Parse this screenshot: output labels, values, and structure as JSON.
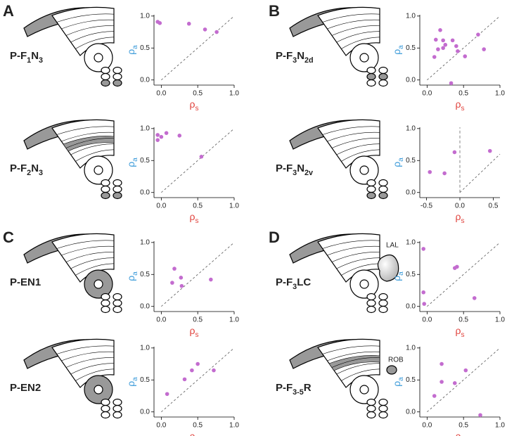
{
  "chart_data": [
    {
      "type": "scatter",
      "panel_letter": "A",
      "title_parts": [
        {
          "text": "P-F"
        },
        {
          "text": "1",
          "sub": true
        },
        {
          "text": "N"
        },
        {
          "text": "3",
          "sub": true
        }
      ],
      "x": [
        -0.05,
        -0.02,
        0.38,
        0.6,
        0.76
      ],
      "values": [
        0.91,
        0.89,
        0.88,
        0.79,
        0.75
      ],
      "xlim": [
        -0.1,
        1.0
      ],
      "ylim": [
        -0.08,
        1.02
      ],
      "xticks": [
        {
          "value": 0,
          "label": "0.0"
        },
        {
          "value": 0.5,
          "label": "0.5"
        },
        {
          "value": 1,
          "label": "1.0"
        }
      ],
      "yticks": [
        {
          "value": 0,
          "label": "0.0"
        },
        {
          "value": 0.5,
          "label": "0.5"
        },
        {
          "value": 1,
          "label": "1.0"
        }
      ],
      "xlabel_parts": [
        {
          "text": "ρ"
        },
        {
          "text": "s",
          "sub": true
        }
      ],
      "ylabel_parts": [
        {
          "text": "ρ"
        },
        {
          "text": "a",
          "sub": true
        }
      ],
      "xlabel_color": "#e0413b",
      "ylabel_color": "#3a9ad9",
      "color": "#c36ccf",
      "diagonal": true
    },
    {
      "type": "scatter",
      "title_parts": [
        {
          "text": "P-F"
        },
        {
          "text": "2",
          "sub": true
        },
        {
          "text": "N"
        },
        {
          "text": "3",
          "sub": true
        }
      ],
      "x": [
        -0.05,
        -0.05,
        0.0,
        0.07,
        0.25,
        0.55
      ],
      "values": [
        0.9,
        0.82,
        0.87,
        0.93,
        0.89,
        0.56
      ],
      "xlim": [
        -0.1,
        1.0
      ],
      "ylim": [
        -0.08,
        1.02
      ],
      "xticks": [
        {
          "value": 0,
          "label": "0.0"
        },
        {
          "value": 0.5,
          "label": "0.5"
        },
        {
          "value": 1,
          "label": "1.0"
        }
      ],
      "yticks": [
        {
          "value": 0,
          "label": "0.0"
        },
        {
          "value": 0.5,
          "label": "0.5"
        },
        {
          "value": 1,
          "label": "1.0"
        }
      ],
      "xlabel_parts": [
        {
          "text": "ρ"
        },
        {
          "text": "s",
          "sub": true
        }
      ],
      "ylabel_parts": [
        {
          "text": "ρ"
        },
        {
          "text": "a",
          "sub": true
        }
      ],
      "xlabel_color": "#e0413b",
      "ylabel_color": "#3a9ad9",
      "color": "#c36ccf",
      "diagonal": true
    },
    {
      "type": "scatter",
      "panel_letter": "B",
      "title_parts": [
        {
          "text": "P-F"
        },
        {
          "text": "3",
          "sub": true
        },
        {
          "text": "N"
        },
        {
          "text": "2d",
          "sub": true
        }
      ],
      "x": [
        0.1,
        0.12,
        0.15,
        0.18,
        0.22,
        0.22,
        0.25,
        0.33,
        0.35,
        0.4,
        0.42,
        0.52,
        0.7,
        0.78
      ],
      "values": [
        0.36,
        0.63,
        0.48,
        0.78,
        0.5,
        0.62,
        0.55,
        -0.05,
        0.62,
        0.53,
        0.45,
        0.37,
        0.71,
        0.48
      ],
      "xlim": [
        -0.1,
        1.0
      ],
      "ylim": [
        -0.08,
        1.02
      ],
      "xticks": [
        {
          "value": 0,
          "label": "0.0"
        },
        {
          "value": 0.5,
          "label": "0.5"
        },
        {
          "value": 1,
          "label": "1.0"
        }
      ],
      "yticks": [
        {
          "value": 0,
          "label": "0.0"
        },
        {
          "value": 0.5,
          "label": "0.5"
        },
        {
          "value": 1,
          "label": "1.0"
        }
      ],
      "xlabel_parts": [
        {
          "text": "ρ"
        },
        {
          "text": "s",
          "sub": true
        }
      ],
      "ylabel_parts": [
        {
          "text": "ρ"
        },
        {
          "text": "a",
          "sub": true
        }
      ],
      "xlabel_color": "#e0413b",
      "ylabel_color": "#3a9ad9",
      "color": "#c36ccf",
      "diagonal": true
    },
    {
      "type": "scatter",
      "title_parts": [
        {
          "text": "P-F"
        },
        {
          "text": "3",
          "sub": true
        },
        {
          "text": "N"
        },
        {
          "text": "2v",
          "sub": true
        }
      ],
      "x": [
        -0.45,
        -0.23,
        -0.08,
        0.45
      ],
      "values": [
        0.32,
        0.3,
        0.63,
        0.65
      ],
      "xlim": [
        -0.6,
        0.6
      ],
      "ylim": [
        -0.08,
        1.02
      ],
      "xticks": [
        {
          "value": -0.5,
          "label": "-0.5"
        },
        {
          "value": 0,
          "label": "0.0"
        },
        {
          "value": 0.5,
          "label": "0.5"
        }
      ],
      "yticks": [
        {
          "value": 0,
          "label": "0.0"
        },
        {
          "value": 0.5,
          "label": "0.5"
        },
        {
          "value": 1,
          "label": "1.0"
        }
      ],
      "xlabel_parts": [
        {
          "text": "ρ"
        },
        {
          "text": "s",
          "sub": true
        }
      ],
      "ylabel_parts": [
        {
          "text": "ρ"
        },
        {
          "text": "a",
          "sub": true
        }
      ],
      "xlabel_color": "#e0413b",
      "ylabel_color": "#3a9ad9",
      "color": "#c36ccf",
      "diagonal": true,
      "vline": 0
    },
    {
      "type": "scatter",
      "panel_letter": "C",
      "title_parts": [
        {
          "text": "P-EN1"
        }
      ],
      "x": [
        0.15,
        0.18,
        0.27,
        0.28,
        0.68
      ],
      "values": [
        0.37,
        0.59,
        0.45,
        0.32,
        0.42
      ],
      "xlim": [
        -0.1,
        1.0
      ],
      "ylim": [
        -0.08,
        1.02
      ],
      "xticks": [
        {
          "value": 0,
          "label": "0.0"
        },
        {
          "value": 0.5,
          "label": "0.5"
        },
        {
          "value": 1,
          "label": "1.0"
        }
      ],
      "yticks": [
        {
          "value": 0,
          "label": "0.0"
        },
        {
          "value": 0.5,
          "label": "0.5"
        },
        {
          "value": 1,
          "label": "1.0"
        }
      ],
      "xlabel_parts": [
        {
          "text": "ρ"
        },
        {
          "text": "s",
          "sub": true
        }
      ],
      "ylabel_parts": [
        {
          "text": "ρ"
        },
        {
          "text": "a",
          "sub": true
        }
      ],
      "xlabel_color": "#e0413b",
      "ylabel_color": "#3a9ad9",
      "color": "#c36ccf",
      "diagonal": true
    },
    {
      "type": "scatter",
      "title_parts": [
        {
          "text": "P-EN2"
        }
      ],
      "x": [
        0.08,
        0.32,
        0.42,
        0.5,
        0.72
      ],
      "values": [
        0.28,
        0.51,
        0.65,
        0.75,
        0.65
      ],
      "xlim": [
        -0.1,
        1.0
      ],
      "ylim": [
        -0.08,
        1.02
      ],
      "xticks": [
        {
          "value": 0,
          "label": "0.0"
        },
        {
          "value": 0.5,
          "label": "0.5"
        },
        {
          "value": 1,
          "label": "1.0"
        }
      ],
      "yticks": [
        {
          "value": 0,
          "label": "0.0"
        },
        {
          "value": 0.5,
          "label": "0.5"
        },
        {
          "value": 1,
          "label": "1.0"
        }
      ],
      "xlabel_parts": [
        {
          "text": "ρ"
        },
        {
          "text": "s",
          "sub": true
        }
      ],
      "ylabel_parts": [
        {
          "text": "ρ"
        },
        {
          "text": "a",
          "sub": true
        }
      ],
      "xlabel_color": "#e0413b",
      "ylabel_color": "#3a9ad9",
      "color": "#c36ccf",
      "diagonal": true
    },
    {
      "type": "scatter",
      "panel_letter": "D",
      "title_parts": [
        {
          "text": "P-F"
        },
        {
          "text": "3",
          "sub": true
        },
        {
          "text": "LC"
        }
      ],
      "icon_label": "LAL",
      "x": [
        -0.05,
        -0.05,
        -0.04,
        0.38,
        0.41,
        0.65
      ],
      "values": [
        0.9,
        0.22,
        0.04,
        0.6,
        0.62,
        0.13
      ],
      "xlim": [
        -0.1,
        1.0
      ],
      "ylim": [
        -0.08,
        1.02
      ],
      "xticks": [
        {
          "value": 0,
          "label": "0.0"
        },
        {
          "value": 0.5,
          "label": "0.5"
        },
        {
          "value": 1,
          "label": "1.0"
        }
      ],
      "yticks": [
        {
          "value": 0,
          "label": "0.0"
        },
        {
          "value": 0.5,
          "label": "0.5"
        },
        {
          "value": 1,
          "label": "1.0"
        }
      ],
      "xlabel_parts": [
        {
          "text": "ρ"
        },
        {
          "text": "s",
          "sub": true
        }
      ],
      "ylabel_parts": [
        {
          "text": "ρ"
        },
        {
          "text": "a",
          "sub": true
        }
      ],
      "xlabel_color": "#e0413b",
      "ylabel_color": "#3a9ad9",
      "color": "#c36ccf",
      "diagonal": true
    },
    {
      "type": "scatter",
      "title_parts": [
        {
          "text": "P-F"
        },
        {
          "text": "3-5",
          "sub": true
        },
        {
          "text": "R"
        }
      ],
      "icon_label": "ROB",
      "x": [
        0.1,
        0.2,
        0.2,
        0.38,
        0.53,
        0.73
      ],
      "values": [
        0.25,
        0.47,
        0.75,
        0.45,
        0.65,
        -0.05
      ],
      "xlim": [
        -0.1,
        1.0
      ],
      "ylim": [
        -0.08,
        1.02
      ],
      "xticks": [
        {
          "value": 0,
          "label": "0.0"
        },
        {
          "value": 0.5,
          "label": "0.5"
        },
        {
          "value": 1,
          "label": "1.0"
        }
      ],
      "yticks": [
        {
          "value": 0,
          "label": "0.0"
        },
        {
          "value": 0.5,
          "label": "0.5"
        },
        {
          "value": 1,
          "label": "1.0"
        }
      ],
      "xlabel_parts": [
        {
          "text": "ρ"
        },
        {
          "text": "s",
          "sub": true
        }
      ],
      "ylabel_parts": [
        {
          "text": "ρ"
        },
        {
          "text": "a",
          "sub": true
        }
      ],
      "xlabel_color": "#e0413b",
      "ylabel_color": "#3a9ad9",
      "color": "#c36ccf",
      "diagonal": true
    }
  ]
}
